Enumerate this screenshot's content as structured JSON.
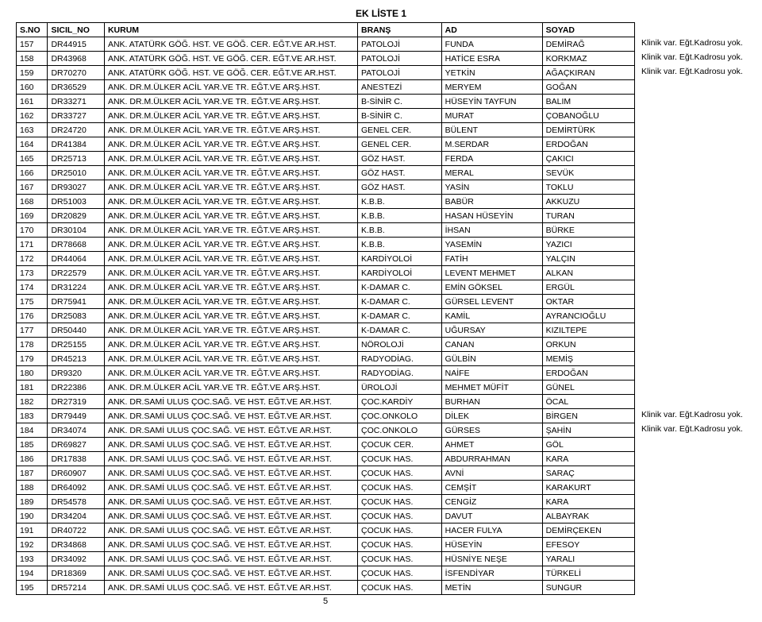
{
  "doc_title": "EK LİSTE 1",
  "headers": {
    "sno": "S.NO",
    "sicil": "SICIL_NO",
    "kurum": "KURUM",
    "brans": "BRANŞ",
    "ad": "AD",
    "soyad": "SOYAD"
  },
  "note_text": "Klinik var. Eğt.Kadrosu yok.",
  "page_number": "5",
  "rows": [
    {
      "sno": "157",
      "sicil": "DR44915",
      "kurum": "ANK. ATATÜRK GÖĞ. HST. VE GÖĞ. CER. EĞT.VE AR.HST.",
      "brans": "PATOLOJİ",
      "ad": "FUNDA",
      "soyad": "DEMİRAĞ",
      "note": true
    },
    {
      "sno": "158",
      "sicil": "DR43968",
      "kurum": "ANK. ATATÜRK GÖĞ. HST. VE GÖĞ. CER. EĞT.VE AR.HST.",
      "brans": "PATOLOJİ",
      "ad": "HATİCE ESRA",
      "soyad": "KORKMAZ",
      "note": true
    },
    {
      "sno": "159",
      "sicil": "DR70270",
      "kurum": "ANK. ATATÜRK GÖĞ. HST. VE GÖĞ. CER. EĞT.VE AR.HST.",
      "brans": "PATOLOJİ",
      "ad": "YETKİN",
      "soyad": "AĞAÇKIRAN",
      "note": true
    },
    {
      "sno": "160",
      "sicil": "DR36529",
      "kurum": "ANK. DR.M.ÜLKER ACİL YAR.VE TR. EĞT.VE ARŞ.HST.",
      "brans": "ANESTEZİ",
      "ad": "MERYEM",
      "soyad": "GOĞAN"
    },
    {
      "sno": "161",
      "sicil": "DR33271",
      "kurum": "ANK. DR.M.ÜLKER ACİL YAR.VE TR. EĞT.VE ARŞ.HST.",
      "brans": "B-SİNİR C.",
      "ad": "HÜSEYİN TAYFUN",
      "soyad": "BALIM"
    },
    {
      "sno": "162",
      "sicil": "DR33727",
      "kurum": "ANK. DR.M.ÜLKER ACİL YAR.VE TR. EĞT.VE ARŞ.HST.",
      "brans": "B-SİNİR C.",
      "ad": "MURAT",
      "soyad": "ÇOBANOĞLU"
    },
    {
      "sno": "163",
      "sicil": "DR24720",
      "kurum": "ANK. DR.M.ÜLKER ACİL YAR.VE TR. EĞT.VE ARŞ.HST.",
      "brans": "GENEL CER.",
      "ad": "BÜLENT",
      "soyad": "DEMİRTÜRK"
    },
    {
      "sno": "164",
      "sicil": "DR41384",
      "kurum": "ANK. DR.M.ÜLKER ACİL YAR.VE TR. EĞT.VE ARŞ.HST.",
      "brans": "GENEL CER.",
      "ad": "M.SERDAR",
      "soyad": "ERDOĞAN"
    },
    {
      "sno": "165",
      "sicil": "DR25713",
      "kurum": "ANK. DR.M.ÜLKER ACİL YAR.VE TR. EĞT.VE ARŞ.HST.",
      "brans": "GÖZ HAST.",
      "ad": "FERDA",
      "soyad": "ÇAKICI"
    },
    {
      "sno": "166",
      "sicil": "DR25010",
      "kurum": "ANK. DR.M.ÜLKER ACİL YAR.VE TR. EĞT.VE ARŞ.HST.",
      "brans": "GÖZ HAST.",
      "ad": "MERAL",
      "soyad": "SEVÜK"
    },
    {
      "sno": "167",
      "sicil": "DR93027",
      "kurum": "ANK. DR.M.ÜLKER ACİL YAR.VE TR. EĞT.VE ARŞ.HST.",
      "brans": "GÖZ HAST.",
      "ad": "YASİN",
      "soyad": "TOKLU"
    },
    {
      "sno": "168",
      "sicil": "DR51003",
      "kurum": "ANK. DR.M.ÜLKER ACİL YAR.VE TR. EĞT.VE ARŞ.HST.",
      "brans": "K.B.B.",
      "ad": "BABÜR",
      "soyad": "AKKUZU"
    },
    {
      "sno": "169",
      "sicil": "DR20829",
      "kurum": "ANK. DR.M.ÜLKER ACİL YAR.VE TR. EĞT.VE ARŞ.HST.",
      "brans": "K.B.B.",
      "ad": "HASAN HÜSEYİN",
      "soyad": "TURAN"
    },
    {
      "sno": "170",
      "sicil": "DR30104",
      "kurum": "ANK. DR.M.ÜLKER ACİL YAR.VE TR. EĞT.VE ARŞ.HST.",
      "brans": "K.B.B.",
      "ad": "İHSAN",
      "soyad": "BÜRKE"
    },
    {
      "sno": "171",
      "sicil": "DR78668",
      "kurum": "ANK. DR.M.ÜLKER ACİL YAR.VE TR. EĞT.VE ARŞ.HST.",
      "brans": "K.B.B.",
      "ad": "YASEMİN",
      "soyad": "YAZICI"
    },
    {
      "sno": "172",
      "sicil": "DR44064",
      "kurum": "ANK. DR.M.ÜLKER ACİL YAR.VE TR. EĞT.VE ARŞ.HST.",
      "brans": "KARDİYOLOİ",
      "ad": "FATİH",
      "soyad": "YALÇIN"
    },
    {
      "sno": "173",
      "sicil": "DR22579",
      "kurum": "ANK. DR.M.ÜLKER ACİL YAR.VE TR. EĞT.VE ARŞ.HST.",
      "brans": "KARDİYOLOİ",
      "ad": "LEVENT MEHMET",
      "soyad": "ALKAN"
    },
    {
      "sno": "174",
      "sicil": "DR31224",
      "kurum": "ANK. DR.M.ÜLKER ACİL YAR.VE TR. EĞT.VE ARŞ.HST.",
      "brans": "K-DAMAR C.",
      "ad": "EMİN GÖKSEL",
      "soyad": "ERGÜL"
    },
    {
      "sno": "175",
      "sicil": "DR75941",
      "kurum": "ANK. DR.M.ÜLKER ACİL YAR.VE TR. EĞT.VE ARŞ.HST.",
      "brans": "K-DAMAR C.",
      "ad": "GÜRSEL LEVENT",
      "soyad": "OKTAR"
    },
    {
      "sno": "176",
      "sicil": "DR25083",
      "kurum": "ANK. DR.M.ÜLKER ACİL YAR.VE TR. EĞT.VE ARŞ.HST.",
      "brans": "K-DAMAR C.",
      "ad": "KAMİL",
      "soyad": "AYRANCIOĞLU"
    },
    {
      "sno": "177",
      "sicil": "DR50440",
      "kurum": "ANK. DR.M.ÜLKER ACİL YAR.VE TR. EĞT.VE ARŞ.HST.",
      "brans": "K-DAMAR C.",
      "ad": "UĞURSAY",
      "soyad": "KIZILTEPE"
    },
    {
      "sno": "178",
      "sicil": "DR25155",
      "kurum": "ANK. DR.M.ÜLKER ACİL YAR.VE TR. EĞT.VE ARŞ.HST.",
      "brans": "NÖROLOJİ",
      "ad": "CANAN",
      "soyad": "ORKUN"
    },
    {
      "sno": "179",
      "sicil": "DR45213",
      "kurum": "ANK. DR.M.ÜLKER ACİL YAR.VE TR. EĞT.VE ARŞ.HST.",
      "brans": "RADYODİAG.",
      "ad": "GÜLBİN",
      "soyad": "MEMİŞ"
    },
    {
      "sno": "180",
      "sicil": "DR9320",
      "kurum": "ANK. DR.M.ÜLKER ACİL YAR.VE TR. EĞT.VE ARŞ.HST.",
      "brans": "RADYODİAG.",
      "ad": "NAİFE",
      "soyad": "ERDOĞAN"
    },
    {
      "sno": "181",
      "sicil": "DR22386",
      "kurum": "ANK. DR.M.ÜLKER ACİL YAR.VE TR. EĞT.VE ARŞ.HST.",
      "brans": "ÜROLOJİ",
      "ad": "MEHMET MÜFİT",
      "soyad": "GÜNEL"
    },
    {
      "sno": "182",
      "sicil": "DR27319",
      "kurum": "ANK. DR.SAMİ ULUS ÇOC.SAĞ. VE HST. EĞT.VE AR.HST.",
      "brans": "ÇOC.KARDİY",
      "ad": "BURHAN",
      "soyad": "ÖCAL"
    },
    {
      "sno": "183",
      "sicil": "DR79449",
      "kurum": "ANK. DR.SAMİ ULUS ÇOC.SAĞ. VE HST. EĞT.VE AR.HST.",
      "brans": "ÇOC.ONKOLO",
      "ad": "DİLEK",
      "soyad": "BİRGEN",
      "note": true
    },
    {
      "sno": "184",
      "sicil": "DR34074",
      "kurum": "ANK. DR.SAMİ ULUS ÇOC.SAĞ. VE HST. EĞT.VE AR.HST.",
      "brans": "ÇOC.ONKOLO",
      "ad": "GÜRSES",
      "soyad": "ŞAHİN",
      "note": true
    },
    {
      "sno": "185",
      "sicil": "DR69827",
      "kurum": "ANK. DR.SAMİ ULUS ÇOC.SAĞ. VE HST. EĞT.VE AR.HST.",
      "brans": "ÇOCUK CER.",
      "ad": "AHMET",
      "soyad": "GÖL"
    },
    {
      "sno": "186",
      "sicil": "DR17838",
      "kurum": "ANK. DR.SAMİ ULUS ÇOC.SAĞ. VE HST. EĞT.VE AR.HST.",
      "brans": "ÇOCUK HAS.",
      "ad": "ABDURRAHMAN",
      "soyad": "KARA"
    },
    {
      "sno": "187",
      "sicil": "DR60907",
      "kurum": "ANK. DR.SAMİ ULUS ÇOC.SAĞ. VE HST. EĞT.VE AR.HST.",
      "brans": "ÇOCUK HAS.",
      "ad": "AVNİ",
      "soyad": "SARAÇ"
    },
    {
      "sno": "188",
      "sicil": "DR64092",
      "kurum": "ANK. DR.SAMİ ULUS ÇOC.SAĞ. VE HST. EĞT.VE AR.HST.",
      "brans": "ÇOCUK HAS.",
      "ad": "CEMŞİT",
      "soyad": "KARAKURT"
    },
    {
      "sno": "189",
      "sicil": "DR54578",
      "kurum": "ANK. DR.SAMİ ULUS ÇOC.SAĞ. VE HST. EĞT.VE AR.HST.",
      "brans": "ÇOCUK HAS.",
      "ad": "CENGİZ",
      "soyad": "KARA"
    },
    {
      "sno": "190",
      "sicil": "DR34204",
      "kurum": "ANK. DR.SAMİ ULUS ÇOC.SAĞ. VE HST. EĞT.VE AR.HST.",
      "brans": "ÇOCUK HAS.",
      "ad": "DAVUT",
      "soyad": "ALBAYRAK"
    },
    {
      "sno": "191",
      "sicil": "DR40722",
      "kurum": "ANK. DR.SAMİ ULUS ÇOC.SAĞ. VE HST. EĞT.VE AR.HST.",
      "brans": "ÇOCUK HAS.",
      "ad": "HACER FULYA",
      "soyad": "DEMİRÇEKEN"
    },
    {
      "sno": "192",
      "sicil": "DR34868",
      "kurum": "ANK. DR.SAMİ ULUS ÇOC.SAĞ. VE HST. EĞT.VE AR.HST.",
      "brans": "ÇOCUK HAS.",
      "ad": "HÜSEYİN",
      "soyad": "EFESOY"
    },
    {
      "sno": "193",
      "sicil": "DR34092",
      "kurum": "ANK. DR.SAMİ ULUS ÇOC.SAĞ. VE HST. EĞT.VE AR.HST.",
      "brans": "ÇOCUK HAS.",
      "ad": "HÜSNİYE NEŞE",
      "soyad": "YARALI"
    },
    {
      "sno": "194",
      "sicil": "DR18369",
      "kurum": "ANK. DR.SAMİ ULUS ÇOC.SAĞ. VE HST. EĞT.VE AR.HST.",
      "brans": "ÇOCUK HAS.",
      "ad": "İSFENDİYAR",
      "soyad": "TÜRKELİ"
    },
    {
      "sno": "195",
      "sicil": "DR57214",
      "kurum": "ANK. DR.SAMİ ULUS ÇOC.SAĞ. VE HST. EĞT.VE AR.HST.",
      "brans": "ÇOCUK HAS.",
      "ad": "METİN",
      "soyad": "SUNGUR"
    }
  ]
}
